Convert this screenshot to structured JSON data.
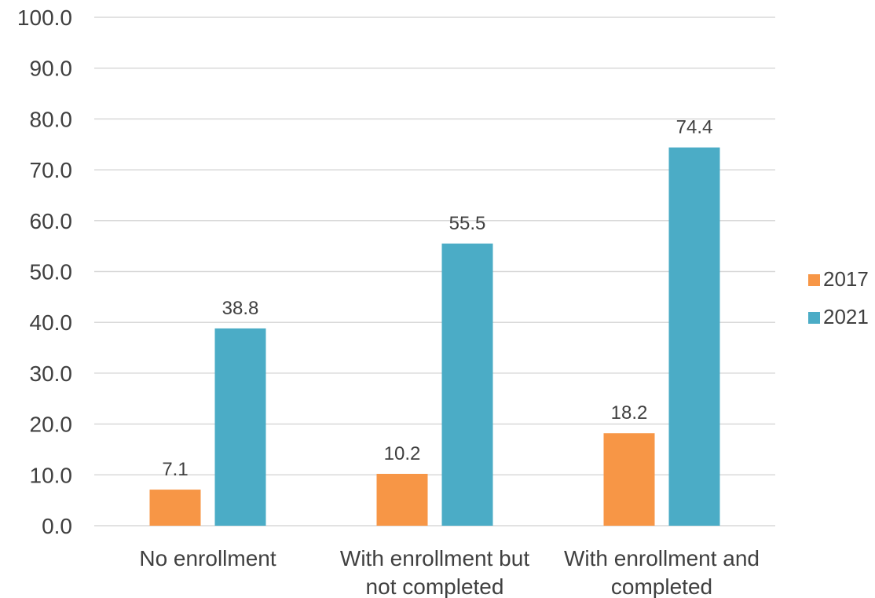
{
  "chart_data": {
    "type": "bar",
    "categories": [
      [
        "No enrollment"
      ],
      [
        "With enrollment but",
        "not completed"
      ],
      [
        "With enrollment and",
        "completed"
      ]
    ],
    "series": [
      {
        "name": "2017",
        "color": "#F79646",
        "values": [
          7.1,
          10.2,
          18.2
        ],
        "labels": [
          "7.1",
          "10.2",
          "18.2"
        ]
      },
      {
        "name": "2021",
        "color": "#4BACC6",
        "values": [
          38.8,
          55.5,
          74.4
        ],
        "labels": [
          "38.8",
          "55.5",
          "74.4"
        ]
      }
    ],
    "ylim": [
      0,
      100
    ],
    "yticks": [
      "0.0",
      "10.0",
      "20.0",
      "30.0",
      "40.0",
      "50.0",
      "60.0",
      "70.0",
      "80.0",
      "90.0",
      "100.0"
    ],
    "grid": true,
    "legend_position": "right"
  }
}
